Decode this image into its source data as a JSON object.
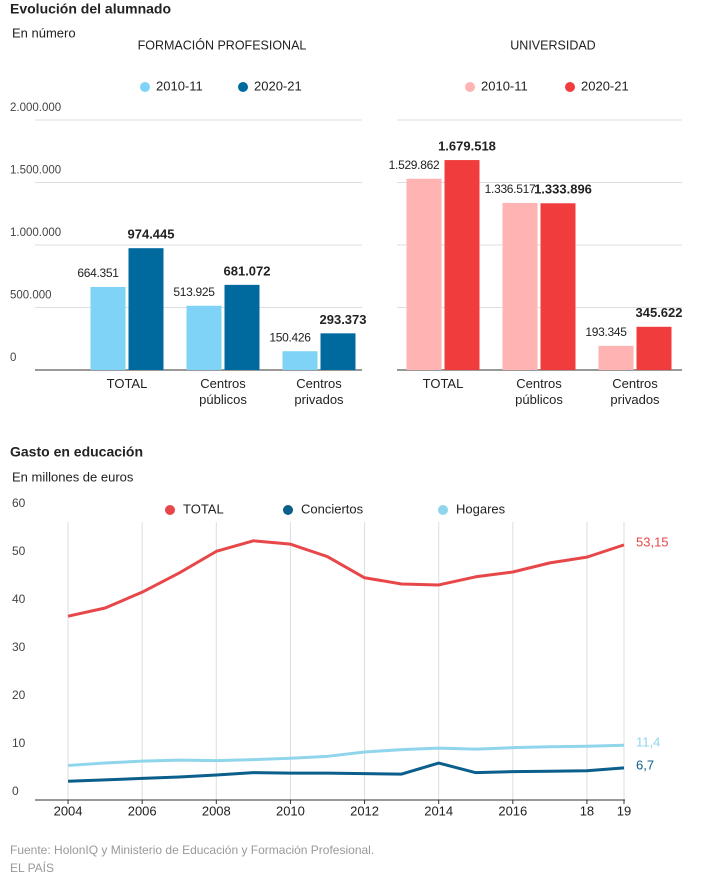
{
  "header": {
    "title": "Evolución del alumnado",
    "subtitle": "En número"
  },
  "chart_data": [
    {
      "type": "bar",
      "title": "FORMACIÓN PROFESIONAL",
      "categories": [
        "TOTAL",
        "Centros públicos",
        "Centros privados"
      ],
      "series": [
        {
          "name": "2010-11",
          "color": "#7fd3f7",
          "values": [
            664351,
            513925,
            150426
          ],
          "value_labels": [
            "664.351",
            "513.925",
            "150.426"
          ]
        },
        {
          "name": "2020-21",
          "color": "#00699e",
          "values": [
            974445,
            681072,
            293373
          ],
          "value_labels": [
            "974.445",
            "681.072",
            "293.373"
          ]
        }
      ],
      "ylim": [
        0,
        2000000
      ],
      "yticks": [
        0,
        {
          "value": 500000,
          "label": "500.000"
        },
        {
          "value": 1000000,
          "label": "1.000.000"
        },
        {
          "value": 1500000,
          "label": "1.500.000"
        },
        {
          "value": 2000000,
          "label": "2.000.000"
        }
      ],
      "grid": true
    },
    {
      "type": "bar",
      "title": "UNIVERSIDAD",
      "categories": [
        "TOTAL",
        "Centros públicos",
        "Centros privados"
      ],
      "series": [
        {
          "name": "2010-11",
          "color": "#ffb3b3",
          "values": [
            1529862,
            1336517,
            193345
          ],
          "value_labels": [
            "1.529.862",
            "1.336.517",
            "193.345"
          ]
        },
        {
          "name": "2020-21",
          "color": "#f03c3c",
          "values": [
            1679518,
            1333896,
            345622
          ],
          "value_labels": [
            "1.679.518",
            "1.333.896",
            "345.622"
          ]
        }
      ],
      "ylim": [
        0,
        2000000
      ],
      "yticks": [
        0,
        500000,
        1000000,
        1500000,
        2000000
      ],
      "tick_labels": false,
      "grid": true
    },
    {
      "type": "line",
      "title": "Gasto en educación",
      "subtitle": "En millones de euros",
      "x": [
        2004,
        2005,
        2006,
        2007,
        2008,
        2009,
        2010,
        2011,
        2012,
        2013,
        2014,
        2015,
        2016,
        2017,
        2018,
        2019
      ],
      "series": [
        {
          "name": "TOTAL",
          "color": "#e8474a",
          "values": [
            38.3,
            40,
            43.3,
            47.3,
            51.8,
            54,
            53.3,
            50.7,
            46.3,
            45,
            44.8,
            46.5,
            47.5,
            49.4,
            50.6,
            53.15
          ],
          "last_label": "53,15"
        },
        {
          "name": "Conciertos",
          "color": "#0b5f8c",
          "values": [
            3.9,
            4.2,
            4.5,
            4.8,
            5.2,
            5.7,
            5.6,
            5.6,
            5.5,
            5.4,
            7.7,
            5.7,
            5.9,
            6.0,
            6.1,
            6.7
          ],
          "last_label": "6,7"
        },
        {
          "name": "Hogares",
          "color": "#8fd6ec",
          "values": [
            7.2,
            7.7,
            8.1,
            8.3,
            8.2,
            8.4,
            8.7,
            9.1,
            10,
            10.5,
            10.8,
            10.6,
            10.9,
            11.1,
            11.2,
            11.4
          ],
          "last_label": "11,4"
        }
      ],
      "xlim": [
        2003,
        2019
      ],
      "xticks": [
        2004,
        2006,
        2008,
        2010,
        2012,
        2014,
        2016,
        {
          "value": 2018,
          "label": "18"
        },
        {
          "value": 2019,
          "label": "19"
        }
      ],
      "ylim": [
        0,
        60
      ],
      "yticks": [
        0,
        10,
        20,
        30,
        40,
        50,
        60
      ],
      "grid": "x"
    }
  ],
  "source": [
    "Fuente: HolonIQ y Ministerio de Educación y Formación Profesional.",
    "EL PAÍS"
  ]
}
